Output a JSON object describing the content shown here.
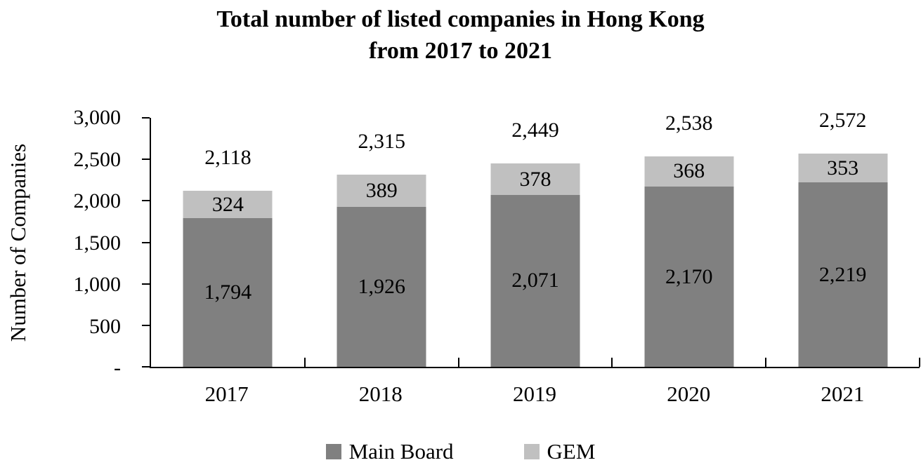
{
  "title": {
    "line1": "Total number of listed companies in Hong Kong",
    "line2": "from 2017 to 2021"
  },
  "colors": {
    "main_board": "#808080",
    "gem": "#c0c0c0",
    "axis": "#000000",
    "text": "#000000",
    "background": "#ffffff"
  },
  "chart_data": {
    "type": "bar",
    "stacked": true,
    "title": "Total number of listed companies in Hong Kong from 2017 to 2021",
    "xlabel": "",
    "ylabel": "Number of Companies",
    "ylim": [
      0,
      3000
    ],
    "ytick_interval": 500,
    "grid": false,
    "yticks": [
      {
        "value": 3000,
        "label": "3,000"
      },
      {
        "value": 2500,
        "label": "2,500"
      },
      {
        "value": 2000,
        "label": "2,000"
      },
      {
        "value": 1500,
        "label": "1,500"
      },
      {
        "value": 1000,
        "label": "1,000"
      },
      {
        "value": 500,
        "label": "500"
      },
      {
        "value": 0,
        "label": "-"
      }
    ],
    "categories": [
      "2017",
      "2018",
      "2019",
      "2020",
      "2021"
    ],
    "series": [
      {
        "name": "Main Board",
        "color": "#808080",
        "values": [
          1794,
          1926,
          2071,
          2170,
          2219
        ],
        "labels": [
          "1,794",
          "1,926",
          "2,071",
          "2,170",
          "2,219"
        ]
      },
      {
        "name": "GEM",
        "color": "#c0c0c0",
        "values": [
          324,
          389,
          378,
          368,
          353
        ],
        "labels": [
          "324",
          "389",
          "378",
          "368",
          "353"
        ]
      }
    ],
    "totals": {
      "values": [
        2118,
        2315,
        2449,
        2538,
        2572
      ],
      "labels": [
        "2,118",
        "2,315",
        "2,449",
        "2,538",
        "2,572"
      ]
    },
    "legend": {
      "position": "bottom",
      "entries": [
        "Main Board",
        "GEM"
      ]
    }
  }
}
